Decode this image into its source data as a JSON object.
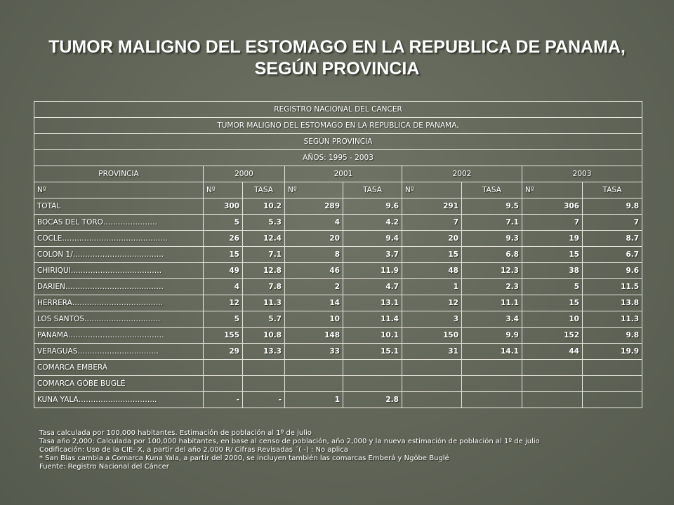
{
  "title": "TUMOR MALIGNO DEL ESTOMAGO EN LA REPUBLICA DE PANAMA, SEGÚN PROVINCIA",
  "table": {
    "banner": [
      "REGISTRO NACIONAL DEL CANCER",
      "TUMOR MALIGNO DEL ESTOMAGO EN LA REPUBLICA DE PANAMA,",
      "SEGÚN PROVINCIA",
      "AÑOS: 1995 - 2003"
    ],
    "province_header": "PROVINCIA",
    "years": [
      "2000",
      "2001",
      "2002",
      "2003"
    ],
    "sub_no": "Nº",
    "sub_tasa": "TASA",
    "rows": [
      {
        "name": "TOTAL",
        "cells": [
          "300",
          "10.2",
          "289",
          "9.6",
          "291",
          "9.5",
          "306",
          "9.8"
        ]
      },
      {
        "name": "BOCAS DEL TORO………………….",
        "cells": [
          "5",
          "5.3",
          "4",
          "4.2",
          "7",
          "7.1",
          "7",
          "7"
        ]
      },
      {
        "name": "COCLE…………………………………….",
        "cells": [
          "26",
          "12.4",
          "20",
          "9.4",
          "20",
          "9.3",
          "19",
          "8.7"
        ]
      },
      {
        "name": "COLON 1/……………………………….",
        "cells": [
          "15",
          "7.1",
          "8",
          "3.7",
          "15",
          "6.8",
          "15",
          "6.7"
        ]
      },
      {
        "name": "CHIRIQUI……………………………….",
        "cells": [
          "49",
          "12.8",
          "46",
          "11.9",
          "48",
          "12.3",
          "38",
          "9.6"
        ]
      },
      {
        "name": "DARIEN………………………………….",
        "cells": [
          "4",
          "7.8",
          "2",
          "4.7",
          "1",
          "2.3",
          "5",
          "11.5"
        ]
      },
      {
        "name": "HERRERA……………………………….",
        "cells": [
          "12",
          "11.3",
          "14",
          "13.1",
          "12",
          "11.1",
          "15",
          "13.8"
        ]
      },
      {
        "name": "LOS SANTOS………………………….",
        "cells": [
          "5",
          "5.7",
          "10",
          "11.4",
          "3",
          "3.4",
          "10",
          "11.3"
        ]
      },
      {
        "name": "PANAMA…………………………………",
        "cells": [
          "155",
          "10.8",
          "148",
          "10.1",
          "150",
          "9.9",
          "152",
          "9.8"
        ]
      },
      {
        "name": "VERAGUAS……………………………",
        "cells": [
          "29",
          "13.3",
          "33",
          "15.1",
          "31",
          "14.1",
          "44",
          "19.9"
        ]
      },
      {
        "name": "COMARCA EMBERÁ",
        "cells": [
          "",
          "",
          "",
          "",
          "",
          "",
          "",
          ""
        ]
      },
      {
        "name": "COMARCA GÓBE BUGLÉ",
        "cells": [
          "",
          "",
          "",
          "",
          "",
          "",
          "",
          ""
        ]
      },
      {
        "name": "KUNA YALA…………………………..",
        "cells": [
          "-",
          "-",
          "1",
          "2.8",
          "",
          "",
          "",
          ""
        ]
      }
    ]
  },
  "notes": [
    "Tasa calculada por 100,000 habitantes. Estimación de población al 1º de julio",
    "Tasa año 2,000: Calculada por 100,000 habitantes, en base al censo de población, año 2,000 y la nueva estimación de población al 1º de julio",
    "Codificación: Uso de la CIE- X, a partir del año 2,000 R/ Cifras Revisadas ´( -) : No aplica",
    "* San Blas cambia a Comarca Kuna Yala, a partir del 2000, se incluyen también las comarcas Emberá y Ngöbe Buglé",
    "Fuente: Registro Nacional del Cáncer"
  ]
}
